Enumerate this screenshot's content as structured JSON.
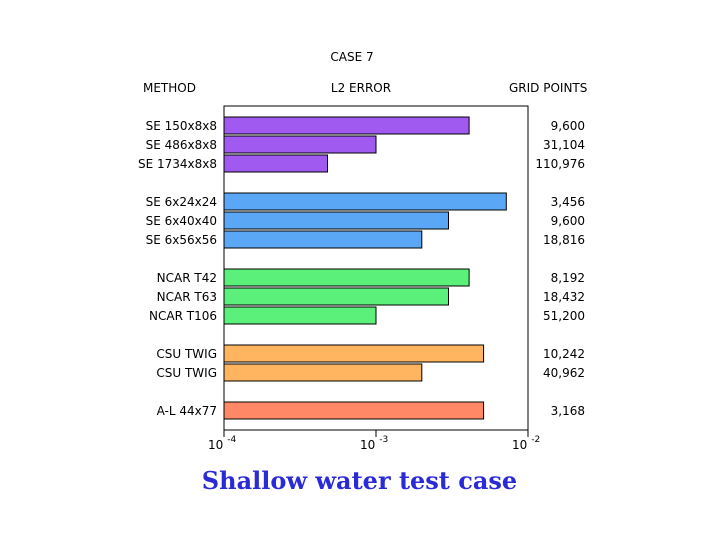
{
  "chart_data": {
    "type": "bar",
    "orientation": "horizontal",
    "title": "CASE 7",
    "headers": {
      "method": "METHOD",
      "value": "L2 ERROR",
      "extra": "GRID POINTS"
    },
    "x_scale": "log",
    "xlim": [
      0.0001,
      0.01
    ],
    "ticks": [
      {
        "base": "10",
        "exp": "-4",
        "value": 0.0001
      },
      {
        "base": "10",
        "exp": "-3",
        "value": 0.001
      },
      {
        "base": "10",
        "exp": "-2",
        "value": 0.01
      }
    ],
    "groups": [
      {
        "color": "#a05af0",
        "bars": [
          {
            "label": "SE 150x8x8",
            "value": 0.0041,
            "grid_points": "9,600"
          },
          {
            "label": "SE 486x8x8",
            "value": 0.001,
            "grid_points": "31,104"
          },
          {
            "label": "SE 1734x8x8",
            "value": 0.00048,
            "grid_points": "110,976"
          }
        ]
      },
      {
        "color": "#5aa8f5",
        "bars": [
          {
            "label": "SE 6x24x24",
            "value": 0.0072,
            "grid_points": "3,456"
          },
          {
            "label": "SE 6x40x40",
            "value": 0.003,
            "grid_points": "9,600"
          },
          {
            "label": "SE 6x56x56",
            "value": 0.002,
            "grid_points": "18,816"
          }
        ]
      },
      {
        "color": "#5af07a",
        "bars": [
          {
            "label": "NCAR T42",
            "value": 0.0041,
            "grid_points": "8,192"
          },
          {
            "label": "NCAR T63",
            "value": 0.003,
            "grid_points": "18,432"
          },
          {
            "label": "NCAR T106",
            "value": 0.001,
            "grid_points": "51,200"
          }
        ]
      },
      {
        "color": "#ffb45f",
        "bars": [
          {
            "label": "CSU TWIG",
            "value": 0.0051,
            "grid_points": "10,242"
          },
          {
            "label": "CSU TWIG",
            "value": 0.002,
            "grid_points": "40,962"
          }
        ]
      },
      {
        "color": "#ff8866",
        "bars": [
          {
            "label": "A-L 44x77",
            "value": 0.0051,
            "grid_points": "3,168"
          }
        ]
      }
    ]
  },
  "caption": "Shallow water test case"
}
